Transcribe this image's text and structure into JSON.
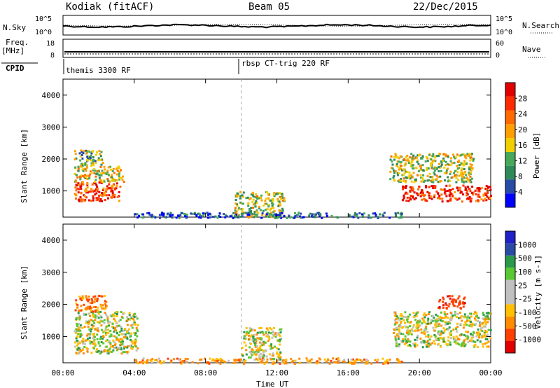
{
  "header": {
    "station": "Kodiak (fitACF)",
    "beam": "Beam 05",
    "date": "22/Dec/2015"
  },
  "summary": {
    "nsky_label": "N.Sky",
    "nsearch_label": "N.Search",
    "nsky_ticks": [
      "10^5",
      "10^0"
    ],
    "nsearch_ticks": [
      "10^5",
      "10^0"
    ],
    "freq_label_top": "Freq.",
    "freq_label_unit": "[MHz]",
    "freq_ticks": [
      "18",
      "8"
    ],
    "nave_label": "Nave",
    "nave_ticks": [
      "60",
      "0"
    ],
    "cpid_label": "CPID",
    "cpid_segments": [
      {
        "label": "themis 3300 RF",
        "start_hour": 0
      },
      {
        "label": "rbsp CT-trig 220 RF",
        "start_hour": 10
      }
    ]
  },
  "axes": {
    "xlabel": "Time UT",
    "x_ticks": [
      "00:00",
      "04:00",
      "08:00",
      "12:00",
      "16:00",
      "20:00",
      "00:00"
    ],
    "ylabel": "Slant Range [km]",
    "y_ticks": [
      "1000",
      "2000",
      "3000",
      "4000"
    ]
  },
  "colors": {
    "power": [
      "#0000ff",
      "#2a4aa8",
      "#2f8a5a",
      "#47a85a",
      "#f0d000",
      "#ffa000",
      "#ff6a00",
      "#ff2a00",
      "#e00000"
    ],
    "velocity": [
      "#e00000",
      "#ff4000",
      "#ff8c00",
      "#ffc000",
      "#c0c0c0",
      "#c0c0c0",
      "#5ac832",
      "#2a9a4a",
      "#2a4aa8",
      "#2020c8"
    ]
  },
  "chart_data": [
    {
      "type": "heatmap",
      "title": "",
      "quantity": "Power",
      "colorbar_label": "Power [dB]",
      "colorbar_ticks": [
        "28",
        "24",
        "20",
        "16",
        "12",
        "8",
        "4"
      ],
      "color_range": [
        0,
        30
      ],
      "xlabel": "",
      "ylabel": "Slant Range [km]",
      "xlim_hours": [
        0,
        24
      ],
      "ylim_km": [
        180,
        4500
      ],
      "regions": [
        {
          "name": "morning-band-low",
          "t_start": 0.6,
          "t_end": 3.2,
          "r_low": 700,
          "r_high": 1300,
          "level_db": 24
        },
        {
          "name": "morning-band-mid",
          "t_start": 0.6,
          "t_end": 3.4,
          "r_low": 1300,
          "r_high": 1800,
          "level_db": 16
        },
        {
          "name": "morning-band-high",
          "t_start": 0.6,
          "t_end": 2.2,
          "r_low": 1800,
          "r_high": 2300,
          "level_db": 12
        },
        {
          "name": "night-patch",
          "t_start": 9.6,
          "t_end": 12.4,
          "r_low": 200,
          "r_high": 1000,
          "level_db": 14
        },
        {
          "name": "evening-band-low",
          "t_start": 19.0,
          "t_end": 24.0,
          "r_low": 700,
          "r_high": 1200,
          "level_db": 26
        },
        {
          "name": "evening-band-high",
          "t_start": 18.3,
          "t_end": 23.0,
          "r_low": 1300,
          "r_high": 2200,
          "level_db": 14
        },
        {
          "name": "ground-line",
          "t_start": 4.0,
          "t_end": 19.0,
          "r_low": 180,
          "r_high": 350,
          "level_db": 6
        }
      ]
    },
    {
      "type": "heatmap",
      "title": "",
      "quantity": "Velocity",
      "colorbar_label": "Velocity [m s-1]",
      "colorbar_ticks": [
        "1000",
        "500",
        "100",
        "25",
        "-25",
        "-100",
        "-500",
        "-1000"
      ],
      "color_range": [
        -1000,
        1000
      ],
      "xlabel": "Time UT",
      "ylabel": "Slant Range [km]",
      "xlim_hours": [
        0,
        24
      ],
      "ylim_km": [
        180,
        4500
      ],
      "regions": [
        {
          "name": "morning-grey",
          "t_start": 0.6,
          "t_end": 4.2,
          "r_low": 500,
          "r_high": 1800,
          "level_ms": 0
        },
        {
          "name": "morning-orange",
          "t_start": 0.6,
          "t_end": 2.5,
          "r_low": 1800,
          "r_high": 2300,
          "level_ms": -200
        },
        {
          "name": "midday-grey",
          "t_start": 10.0,
          "t_end": 12.2,
          "r_low": 300,
          "r_high": 1300,
          "level_ms": 0
        },
        {
          "name": "evening-grey",
          "t_start": 18.5,
          "t_end": 24.0,
          "r_low": 700,
          "r_high": 1800,
          "level_ms": 0
        },
        {
          "name": "evening-orange",
          "t_start": 21.0,
          "t_end": 22.5,
          "r_low": 1900,
          "r_high": 2300,
          "level_ms": -400
        },
        {
          "name": "ground-line",
          "t_start": 4.0,
          "t_end": 19.0,
          "r_low": 180,
          "r_high": 350,
          "level_ms": -150
        }
      ]
    }
  ]
}
